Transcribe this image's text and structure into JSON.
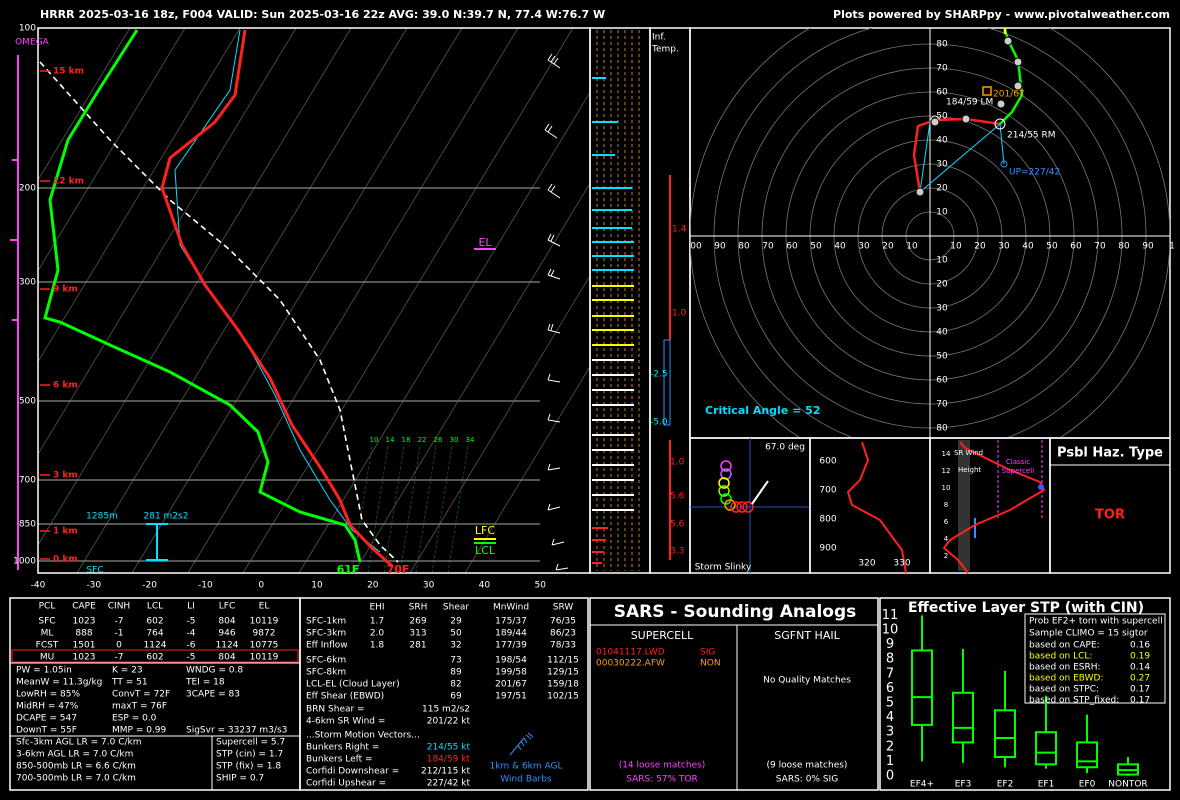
{
  "header": {
    "title": "HRRR 2025-03-16 18z, F004  VALID: Sun 2025-03-16 22z  AVG: 39.0 N:39.7 N, 77.4 W:76.7 W",
    "credit": "Plots powered by SHARPpy - www.pivotalweather.com"
  },
  "skewt": {
    "omega": "OMEGA",
    "pressures": [
      "100",
      "200",
      "300",
      "500",
      "700",
      "850",
      "1000"
    ],
    "heights": [
      "15 km",
      "12 km",
      "9 km",
      "6 km",
      "3 km",
      "1 km",
      "0 km"
    ],
    "temps": [
      "-40",
      "-30",
      "-20",
      "-10",
      "0",
      "10",
      "20",
      "30",
      "40",
      "50"
    ],
    "mixing": [
      "10",
      "14",
      "18",
      "22",
      "26",
      "30",
      "34"
    ],
    "el": "EL",
    "lfc": "LFC",
    "lcl": "LCL",
    "sfc": "SFC",
    "dewpoint": "61F",
    "temperature": "70F",
    "eff_base": "1285m",
    "eff_srh": "281 m2s2"
  },
  "inflow": {
    "title": [
      "Inf.",
      "Temp."
    ],
    "values": [
      "1.4",
      "1.0",
      "-2.5",
      "-5.0",
      "1.0",
      "5.6",
      "5.6",
      "3.3"
    ]
  },
  "hodograph": {
    "up_labels": [
      "80",
      "70",
      "60",
      "50",
      "40",
      "30",
      "20",
      "10"
    ],
    "left_labels": [
      "00",
      "90",
      "80",
      "70",
      "60",
      "50",
      "40",
      "30",
      "20",
      "10"
    ],
    "right_labels": [
      "10",
      "20",
      "30",
      "40",
      "50",
      "60",
      "70",
      "80",
      "90",
      "1"
    ],
    "down_labels": [
      "10",
      "20",
      "30",
      "40",
      "50",
      "60",
      "70",
      "80"
    ],
    "mean": "201/67",
    "left_mover": "184/59 LM",
    "right_mover": "214/55 RM",
    "upshear": "UP=227/42",
    "critical_angle": "Critical Angle = 52"
  },
  "slinky": {
    "angle": "67.0 deg",
    "title": "Storm Slinky"
  },
  "theta_e": {
    "pressures": [
      "600",
      "700",
      "800",
      "900"
    ],
    "temps": [
      "320",
      "330"
    ]
  },
  "sr_wind": {
    "heights": [
      "14",
      "12",
      "10",
      "8",
      "6",
      "4",
      "2"
    ],
    "title": [
      "SR Wind",
      "Height"
    ],
    "classic": [
      "Classic",
      "Supercell"
    ]
  },
  "hazard": {
    "title": "Psbl Haz. Type",
    "type": "TOR"
  },
  "parcels": {
    "headers": [
      "PCL",
      "CAPE",
      "CINH",
      "LCL",
      "LI",
      "LFC",
      "EL"
    ],
    "rows": [
      [
        "SFC",
        "1023",
        "-7",
        "602",
        "-5",
        "804",
        "10119"
      ],
      [
        "ML",
        "888",
        "-1",
        "764",
        "-4",
        "946",
        "9872"
      ],
      [
        "FCST",
        "1501",
        "0",
        "1124",
        "-6",
        "1124",
        "10775"
      ],
      [
        "MU",
        "1023",
        "-7",
        "602",
        "-5",
        "804",
        "10119"
      ]
    ]
  },
  "indices": [
    [
      "PW = 1.05in",
      "K = 23",
      "WNDG = 0.8"
    ],
    [
      "MeanW = 11.3g/kg",
      "TT = 51",
      "TEI = 18"
    ],
    [
      "LowRH = 85%",
      "ConvT = 72F",
      "3CAPE = 83"
    ],
    [
      "MidRH = 47%",
      "maxT = 76F"
    ],
    [
      "DCAPE = 547",
      "ESP = 0.0"
    ],
    [
      "DownT = 55F",
      "MMP = 0.99",
      "SigSvr = 33237 m3/s3"
    ]
  ],
  "lapse_rates": [
    "Sfc-3km AGL LR = 7.0 C/km",
    "3-6km AGL LR = 7.0 C/km",
    "850-500mb LR = 6.6 C/km",
    "700-500mb LR = 7.0 C/km"
  ],
  "composites": [
    "Supercell = 5.7",
    "STP (cin) = 1.7",
    "STP (fix) = 1.8",
    "SHIP = 0.7"
  ],
  "kinematics": {
    "headers": [
      "EHI",
      "SRH",
      "Shear",
      "MnWind",
      "SRW"
    ],
    "rows": [
      [
        "SFC-1km",
        "1.7",
        "269",
        "29",
        "175/37",
        "76/35"
      ],
      [
        "SFC-3km",
        "2.0",
        "313",
        "50",
        "189/44",
        "86/23"
      ],
      [
        "Eff Inflow",
        "1.8",
        "281",
        "32",
        "177/39",
        "78/33"
      ],
      [
        "SFC-6km",
        null,
        null,
        "73",
        "198/54",
        "112/15"
      ],
      [
        "SFC-8km",
        null,
        null,
        "89",
        "199/58",
        "129/15"
      ],
      [
        "LCL-EL (Cloud Layer)",
        null,
        null,
        "82",
        "201/67",
        "159/18"
      ],
      [
        "Eff Shear (EBWD)",
        null,
        null,
        "69",
        "197/51",
        "102/15"
      ]
    ],
    "params": [
      [
        "BRN Shear =",
        "115 m2/s2"
      ],
      [
        "4-6km SR Wind =",
        "201/22 kt"
      ]
    ],
    "motion_title": "...Storm Motion Vectors...",
    "motion": [
      [
        "Bunkers Right =",
        "214/55 kt"
      ],
      [
        "Bunkers Left =",
        "184/59 kt"
      ],
      [
        "Corfidi Downshear =",
        "212/115 kt"
      ],
      [
        "Corfidi Upshear =",
        "227/42 kt"
      ]
    ],
    "barbs_caption": [
      "1km & 6km AGL",
      "Wind Barbs"
    ]
  },
  "sars": {
    "title": "SARS - Sounding Analogs",
    "supercell": "SUPERCELL",
    "hail": "SGFNT HAIL",
    "matches": [
      [
        "01041117.LWD",
        "SIG"
      ],
      [
        "00030222.AFW",
        "NON"
      ]
    ],
    "hail_matches": "No Quality Matches",
    "supercell_loose": "(14 loose matches)",
    "supercell_result": "SARS: 57% TOR",
    "hail_loose": "(9 loose matches)",
    "hail_result": "SARS: 0% SIG"
  },
  "stp": {
    "title": "Effective Layer STP (with CIN)",
    "yticks": [
      "0",
      "1",
      "2",
      "3",
      "4",
      "5",
      "6",
      "7",
      "8",
      "9",
      "10",
      "11"
    ],
    "categories": [
      "EF4+",
      "EF3",
      "EF2",
      "EF1",
      "EF0",
      "NONTOR"
    ],
    "box_title": [
      "Prob EF2+ torn with supercell",
      "Sample CLIMO = 15 sigtor"
    ],
    "probs": [
      [
        "based on CAPE:",
        "0.16"
      ],
      [
        "based on LCL:",
        "0.19"
      ],
      [
        "based on ESRH:",
        "0.14"
      ],
      [
        "based on EBWD:",
        "0.27"
      ],
      [
        "based on STPC:",
        "0.17"
      ],
      [
        "based on STP_fixed:",
        "0.17"
      ]
    ]
  }
}
